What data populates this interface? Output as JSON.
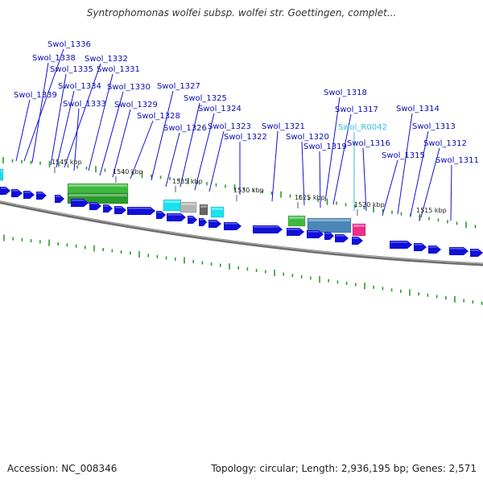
{
  "title": "Syntrophomonas wolfei subsp. wolfei str. Goettingen, complet...",
  "footer": {
    "accession": "Accession: NC_008346",
    "summary": "Topology: circular; Length: 2,936,195 bp; Genes: 2,571"
  },
  "colors": {
    "cds": "#1010d8",
    "cds_label": "#0a0ab4",
    "rna_label": "#33bde0",
    "backbone": "#8c8c8c",
    "tick": "#2e9a2e",
    "block_green": "#3fb83f",
    "block_cyan": "#19e3f0",
    "block_gray": "#b4b4b4",
    "block_steel": "#4a87b8",
    "block_magenta": "#f02c8c"
  },
  "kbp_labels": [
    "1545 kbp",
    "1540 kbp",
    "1535 kbp",
    "1530 kbp",
    "1525 kbp",
    "1520 kbp",
    "1515 kbp"
  ],
  "gene_labels": [
    "Swol_1336",
    "Swol_1338",
    "Swol_1332",
    "Swol_1335",
    "Swol_1331",
    "Swol_1334",
    "Swol_1330",
    "Swol_1327",
    "Swol_1339",
    "Swol_1333",
    "Swol_1329",
    "Swol_1325",
    "Swol_1318",
    "Swol_1328",
    "Swol_1324",
    "Swol_1317",
    "Swol_1314",
    "Swol_1326",
    "Swol_1323",
    "Swol_1321",
    "Swol_R0042",
    "Swol_1313",
    "Swol_1322",
    "Swol_1320",
    "Swol_1316",
    "Swol_1312",
    "Swol_1319",
    "Swol_1315",
    "Swol_1311"
  ]
}
